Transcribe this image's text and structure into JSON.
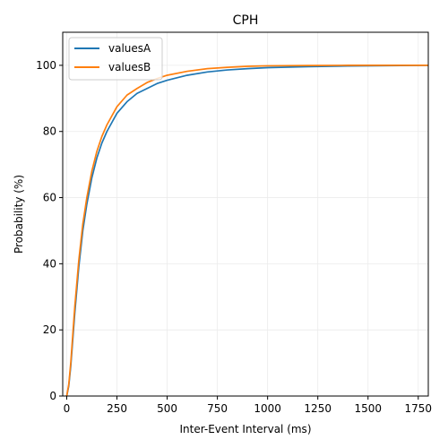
{
  "chart_data": {
    "type": "line",
    "title": "CPH",
    "xlabel": "Inter-Event Interval (ms)",
    "ylabel": "Probability (%)",
    "xlim": [
      -20,
      1800
    ],
    "ylim": [
      0,
      110
    ],
    "xticks": [
      0,
      250,
      500,
      750,
      1000,
      1250,
      1500,
      1750
    ],
    "yticks": [
      0,
      20,
      40,
      60,
      80,
      100
    ],
    "grid": true,
    "legend": "top-left",
    "series": [
      {
        "name": "valuesA",
        "color": "#1f77b4",
        "x": [
          0,
          10,
          20,
          40,
          60,
          80,
          100,
          125,
          150,
          175,
          200,
          250,
          300,
          350,
          400,
          450,
          500,
          600,
          700,
          800,
          900,
          1000,
          1200,
          1400,
          1600,
          1800
        ],
        "y": [
          0,
          3,
          9,
          25,
          39,
          50,
          58,
          66,
          72,
          76.5,
          80,
          85.5,
          89,
          91.5,
          93,
          94.5,
          95.5,
          97,
          98,
          98.6,
          99,
          99.3,
          99.6,
          99.8,
          99.9,
          100
        ]
      },
      {
        "name": "valuesB",
        "color": "#ff7f0e",
        "x": [
          0,
          10,
          20,
          40,
          60,
          80,
          100,
          125,
          150,
          175,
          200,
          250,
          300,
          350,
          400,
          450,
          500,
          600,
          700,
          800,
          900,
          1000,
          1200,
          1400,
          1600,
          1800
        ],
        "y": [
          0,
          3.5,
          10,
          27,
          41,
          52,
          60,
          68,
          74,
          78.5,
          82,
          87.5,
          91,
          93,
          94.8,
          96,
          97,
          98.2,
          99,
          99.4,
          99.7,
          99.85,
          99.95,
          100,
          100,
          100
        ]
      }
    ]
  }
}
